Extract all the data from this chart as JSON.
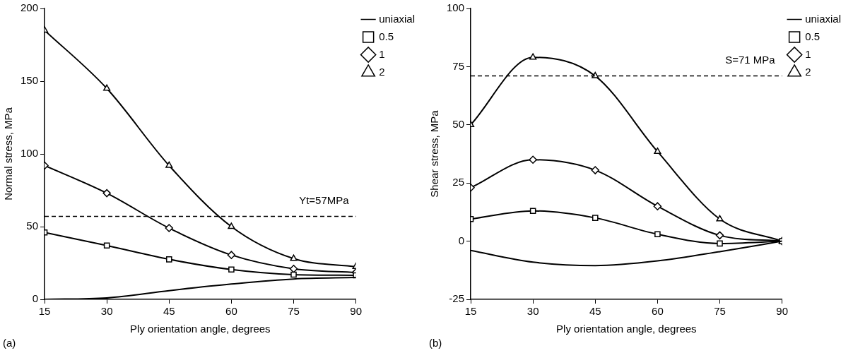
{
  "chart_data": [
    {
      "type": "line",
      "xlabel": "Ply orientation angle, degrees",
      "ylabel": "Normal stress, MPa",
      "x": [
        15,
        30,
        45,
        60,
        75,
        90
      ],
      "xlim": [
        15,
        90
      ],
      "xticks": [
        15,
        30,
        45,
        60,
        75,
        90
      ],
      "ylim": [
        0,
        200
      ],
      "yticks": [
        0,
        50,
        100,
        150,
        200
      ],
      "grid": false,
      "legend": "top right",
      "line_style": "solid",
      "annotations": [
        "(a)"
      ],
      "ref_lines": [
        {
          "axis": "y",
          "value": 57,
          "label": "Yt=57MPa",
          "line_style": "dashed",
          "color": "#000000"
        }
      ],
      "series": [
        {
          "name": "uniaxial",
          "color": "#000000",
          "marker": "none",
          "values": [
            0,
            1,
            6,
            10.5,
            14,
            15
          ]
        },
        {
          "name": "0.5",
          "color": "#000000",
          "marker": "square",
          "values": [
            46,
            37,
            27.5,
            20.5,
            17,
            16.5
          ]
        },
        {
          "name": "1",
          "color": "#000000",
          "marker": "diamond",
          "values": [
            92,
            73,
            49,
            30.5,
            21,
            18.5
          ]
        },
        {
          "name": "2",
          "color": "#000000",
          "marker": "triangle",
          "values": [
            185,
            145,
            92,
            50,
            28,
            22.5
          ]
        }
      ]
    },
    {
      "type": "line",
      "xlabel": "Ply orientation angle, degrees",
      "ylabel": "Shear stress, MPa",
      "x": [
        15,
        30,
        45,
        60,
        75,
        90
      ],
      "xlim": [
        15,
        90
      ],
      "xticks": [
        15,
        30,
        45,
        60,
        75,
        90
      ],
      "ylim": [
        -25,
        100
      ],
      "yticks": [
        -25,
        0,
        25,
        50,
        75,
        100
      ],
      "grid": false,
      "legend": "top right",
      "line_style": "solid",
      "annotations": [
        "(b)"
      ],
      "ref_lines": [
        {
          "axis": "y",
          "value": 71,
          "label": "S=71 MPa",
          "line_style": "dashed",
          "color": "#000000"
        }
      ],
      "series": [
        {
          "name": "uniaxial",
          "color": "#000000",
          "marker": "none",
          "values": [
            -4,
            -9,
            -10.5,
            -8.5,
            -4.5,
            0
          ]
        },
        {
          "name": "0.5",
          "color": "#000000",
          "marker": "square",
          "values": [
            9.5,
            13,
            10,
            3,
            -1,
            0
          ]
        },
        {
          "name": "1",
          "color": "#000000",
          "marker": "diamond",
          "values": [
            23,
            35,
            30.5,
            15,
            2.5,
            0
          ]
        },
        {
          "name": "2",
          "color": "#000000",
          "marker": "triangle",
          "values": [
            50,
            79,
            71,
            38.5,
            9.5,
            0
          ]
        }
      ]
    }
  ]
}
